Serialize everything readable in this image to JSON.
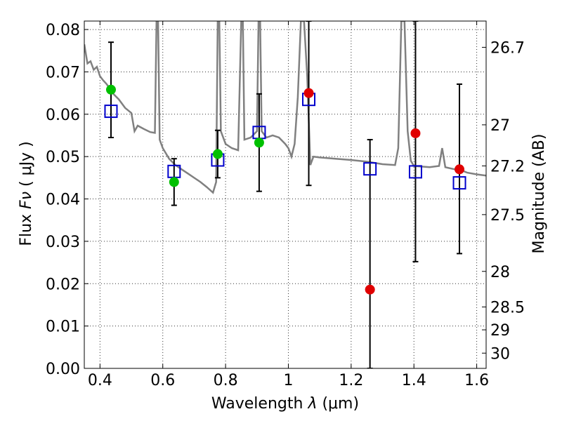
{
  "chart_data": {
    "type": "scatter",
    "xlabel_prefix": "Wavelength",
    "xlabel_symbol": "λ",
    "xlabel_unit": "(μm)",
    "ylabel_prefix": "Flux",
    "ylabel_symbol": "Fν",
    "ylabel_unit": "( μJy )",
    "ylabel_right": "Magnitude (AB)",
    "xlim": [
      0.35,
      1.63
    ],
    "ylim": [
      0.0,
      0.082
    ],
    "grid": true,
    "x_ticks": [
      0.4,
      0.6,
      0.8,
      1.0,
      1.2,
      1.4,
      1.6
    ],
    "x_tick_labels": [
      "0.4",
      "0.6",
      "0.8",
      "1",
      "1.2",
      "1.4",
      "1.6"
    ],
    "y_ticks": [
      0.0,
      0.01,
      0.02,
      0.03,
      0.04,
      0.05,
      0.06,
      0.07,
      0.08
    ],
    "y_tick_labels": [
      "0.00",
      "0.01",
      "0.02",
      "0.03",
      "0.04",
      "0.05",
      "0.06",
      "0.07",
      "0.08"
    ],
    "mag_ticks": [
      {
        "label": "26.7",
        "flux": 0.0758
      },
      {
        "label": "27",
        "flux": 0.0575
      },
      {
        "label": "27.2",
        "flux": 0.0478
      },
      {
        "label": "27.5",
        "flux": 0.0363
      },
      {
        "label": "28",
        "flux": 0.0229
      },
      {
        "label": "28.5",
        "flux": 0.0145
      },
      {
        "label": "29",
        "flux": 0.0091
      },
      {
        "label": "30",
        "flux": 0.0036
      }
    ],
    "model_spectrum": {
      "color": "#808080",
      "points": [
        [
          0.35,
          0.0765
        ],
        [
          0.36,
          0.072
        ],
        [
          0.37,
          0.0725
        ],
        [
          0.38,
          0.0705
        ],
        [
          0.39,
          0.0712
        ],
        [
          0.4,
          0.069
        ],
        [
          0.41,
          0.068
        ],
        [
          0.42,
          0.0672
        ],
        [
          0.43,
          0.0662
        ],
        [
          0.44,
          0.065
        ],
        [
          0.46,
          0.0635
        ],
        [
          0.48,
          0.0615
        ],
        [
          0.5,
          0.0603
        ],
        [
          0.51,
          0.056
        ],
        [
          0.52,
          0.0573
        ],
        [
          0.54,
          0.0565
        ],
        [
          0.56,
          0.0558
        ],
        [
          0.575,
          0.0556
        ],
        [
          0.58,
          0.082
        ],
        [
          0.585,
          0.082
        ],
        [
          0.59,
          0.054
        ],
        [
          0.6,
          0.052
        ],
        [
          0.62,
          0.0495
        ],
        [
          0.64,
          0.048
        ],
        [
          0.66,
          0.047
        ],
        [
          0.68,
          0.046
        ],
        [
          0.7,
          0.045
        ],
        [
          0.72,
          0.044
        ],
        [
          0.74,
          0.0428
        ],
        [
          0.76,
          0.0415
        ],
        [
          0.77,
          0.044
        ],
        [
          0.775,
          0.082
        ],
        [
          0.78,
          0.082
        ],
        [
          0.785,
          0.056
        ],
        [
          0.8,
          0.053
        ],
        [
          0.82,
          0.052
        ],
        [
          0.84,
          0.0515
        ],
        [
          0.85,
          0.082
        ],
        [
          0.855,
          0.082
        ],
        [
          0.86,
          0.054
        ],
        [
          0.88,
          0.0545
        ],
        [
          0.9,
          0.056
        ],
        [
          0.905,
          0.082
        ],
        [
          0.91,
          0.082
        ],
        [
          0.915,
          0.056
        ],
        [
          0.93,
          0.0545
        ],
        [
          0.95,
          0.055
        ],
        [
          0.97,
          0.0545
        ],
        [
          0.99,
          0.053
        ],
        [
          1.0,
          0.052
        ],
        [
          1.01,
          0.05
        ],
        [
          1.02,
          0.053
        ],
        [
          1.03,
          0.064
        ],
        [
          1.04,
          0.082
        ],
        [
          1.05,
          0.082
        ],
        [
          1.06,
          0.069
        ],
        [
          1.07,
          0.048
        ],
        [
          1.08,
          0.05
        ],
        [
          1.1,
          0.0498
        ],
        [
          1.15,
          0.0495
        ],
        [
          1.2,
          0.0492
        ],
        [
          1.25,
          0.0488
        ],
        [
          1.3,
          0.0482
        ],
        [
          1.34,
          0.048
        ],
        [
          1.35,
          0.052
        ],
        [
          1.36,
          0.082
        ],
        [
          1.37,
          0.082
        ],
        [
          1.38,
          0.056
        ],
        [
          1.39,
          0.049
        ],
        [
          1.4,
          0.0478
        ],
        [
          1.45,
          0.0475
        ],
        [
          1.48,
          0.0478
        ],
        [
          1.49,
          0.052
        ],
        [
          1.5,
          0.0475
        ],
        [
          1.53,
          0.047
        ],
        [
          1.55,
          0.0468
        ],
        [
          1.57,
          0.0462
        ],
        [
          1.6,
          0.0458
        ],
        [
          1.63,
          0.0455
        ]
      ]
    },
    "series": [
      {
        "marker": "square",
        "color": "#0000cc",
        "points": [
          {
            "x": 0.435,
            "y": 0.0607
          },
          {
            "x": 0.636,
            "y": 0.0465
          },
          {
            "x": 0.775,
            "y": 0.0492
          },
          {
            "x": 0.907,
            "y": 0.0557
          },
          {
            "x": 1.065,
            "y": 0.0635
          },
          {
            "x": 1.26,
            "y": 0.0471
          },
          {
            "x": 1.405,
            "y": 0.0464
          },
          {
            "x": 1.545,
            "y": 0.0438
          }
        ]
      },
      {
        "marker": "circle",
        "color": "#00c000",
        "points": [
          {
            "x": 0.435,
            "y": 0.0658,
            "ylow": 0.0545,
            "yhigh": 0.077
          },
          {
            "x": 0.636,
            "y": 0.044,
            "ylow": 0.0385,
            "yhigh": 0.0495
          },
          {
            "x": 0.775,
            "y": 0.0506,
            "ylow": 0.045,
            "yhigh": 0.0562
          },
          {
            "x": 0.907,
            "y": 0.0533,
            "ylow": 0.0418,
            "yhigh": 0.0648
          }
        ]
      },
      {
        "marker": "circle",
        "color": "#e00000",
        "points": [
          {
            "x": 1.065,
            "y": 0.065,
            "ylow": 0.0432,
            "yhigh": 0.082
          },
          {
            "x": 1.26,
            "y": 0.0186,
            "ylow": 0.0,
            "yhigh": 0.054
          },
          {
            "x": 1.405,
            "y": 0.0555,
            "ylow": 0.0252,
            "yhigh": 0.082
          },
          {
            "x": 1.545,
            "y": 0.047,
            "ylow": 0.0271,
            "yhigh": 0.0671
          }
        ]
      }
    ]
  }
}
